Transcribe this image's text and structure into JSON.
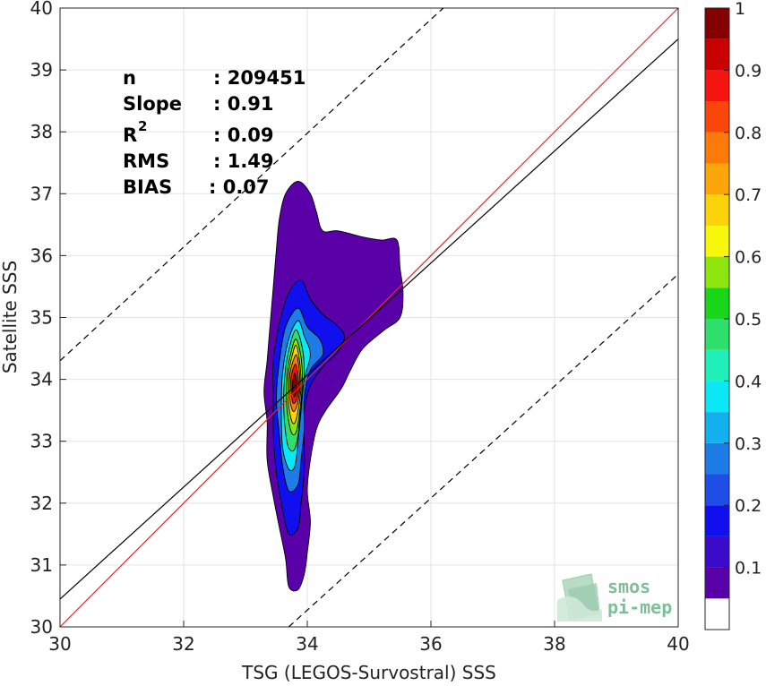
{
  "chart_data": {
    "type": "scatter",
    "subtype": "density-contour",
    "xlabel": "TSG (LEGOS-Survostral) SSS",
    "ylabel": "Satellite SSS",
    "xlim": [
      30,
      40
    ],
    "ylim": [
      30,
      40
    ],
    "xticks": [
      "30",
      "32",
      "34",
      "36",
      "38",
      "40"
    ],
    "yticks": [
      "30",
      "31",
      "32",
      "33",
      "34",
      "35",
      "36",
      "37",
      "38",
      "39",
      "40"
    ],
    "grid": true,
    "stats": [
      {
        "label": "n",
        "value": ": 209451"
      },
      {
        "label": "Slope",
        "value": ": 0.91"
      },
      {
        "label": "R",
        "sup": "2",
        "value": ": 0.09"
      },
      {
        "label": "RMS",
        "value": ": 1.49"
      },
      {
        "label": "BIAS",
        "value": ": 0.07"
      }
    ],
    "lines": {
      "identity": {
        "x": [
          30,
          40
        ],
        "y": [
          30,
          40
        ],
        "color": "#e8242a"
      },
      "regression": {
        "x": [
          30,
          40
        ],
        "y": [
          30.45,
          39.5
        ],
        "color": "#000000"
      },
      "rms_upper": {
        "x": [
          30,
          36.2
        ],
        "y": [
          34.3,
          40
        ],
        "color": "#000000",
        "dash": true
      },
      "rms_lower": {
        "x": [
          33.7,
          40
        ],
        "y": [
          30,
          35.7
        ],
        "color": "#000000",
        "dash": true
      }
    },
    "density_peak": {
      "x": 33.8,
      "y": 34.0
    },
    "contours": [
      {
        "level": 0.05,
        "points": [
          [
            33.85,
            37.2
          ],
          [
            34.05,
            37.0
          ],
          [
            34.15,
            36.7
          ],
          [
            34.25,
            36.4
          ],
          [
            34.5,
            36.4
          ],
          [
            34.9,
            36.3
          ],
          [
            35.2,
            36.25
          ],
          [
            35.45,
            36.25
          ],
          [
            35.5,
            35.8
          ],
          [
            35.55,
            35.4
          ],
          [
            35.5,
            35.0
          ],
          [
            35.25,
            34.8
          ],
          [
            34.9,
            34.5
          ],
          [
            34.7,
            34.15
          ],
          [
            34.55,
            33.85
          ],
          [
            34.3,
            33.5
          ],
          [
            34.15,
            33.2
          ],
          [
            34.05,
            32.7
          ],
          [
            34.0,
            32.2
          ],
          [
            34.05,
            31.7
          ],
          [
            34.0,
            31.2
          ],
          [
            33.95,
            30.85
          ],
          [
            33.85,
            30.6
          ],
          [
            33.7,
            30.65
          ],
          [
            33.65,
            31.1
          ],
          [
            33.55,
            31.6
          ],
          [
            33.45,
            32.1
          ],
          [
            33.35,
            32.7
          ],
          [
            33.35,
            33.3
          ],
          [
            33.3,
            33.8
          ],
          [
            33.35,
            34.3
          ],
          [
            33.4,
            34.9
          ],
          [
            33.45,
            35.5
          ],
          [
            33.5,
            36.1
          ],
          [
            33.55,
            36.6
          ],
          [
            33.65,
            37.0
          ]
        ]
      },
      {
        "level": 0.15,
        "points": [
          [
            33.9,
            35.6
          ],
          [
            34.05,
            35.3
          ],
          [
            34.25,
            35.05
          ],
          [
            34.45,
            34.9
          ],
          [
            34.6,
            34.7
          ],
          [
            34.5,
            34.45
          ],
          [
            34.25,
            34.2
          ],
          [
            34.05,
            33.9
          ],
          [
            33.95,
            33.5
          ],
          [
            33.95,
            33.0
          ],
          [
            33.95,
            32.5
          ],
          [
            33.9,
            32.0
          ],
          [
            33.85,
            31.6
          ],
          [
            33.7,
            31.5
          ],
          [
            33.6,
            31.9
          ],
          [
            33.5,
            32.5
          ],
          [
            33.45,
            33.1
          ],
          [
            33.45,
            33.7
          ],
          [
            33.45,
            34.3
          ],
          [
            33.55,
            34.9
          ],
          [
            33.7,
            35.4
          ]
        ]
      },
      {
        "level": 0.25,
        "points": [
          [
            33.85,
            35.15
          ],
          [
            34.0,
            34.85
          ],
          [
            34.2,
            34.65
          ],
          [
            34.25,
            34.4
          ],
          [
            34.05,
            34.15
          ],
          [
            33.95,
            33.7
          ],
          [
            33.95,
            33.2
          ],
          [
            33.9,
            32.7
          ],
          [
            33.85,
            32.3
          ],
          [
            33.7,
            32.2
          ],
          [
            33.6,
            32.6
          ],
          [
            33.55,
            33.1
          ],
          [
            33.5,
            33.7
          ],
          [
            33.55,
            34.3
          ],
          [
            33.65,
            34.85
          ]
        ]
      },
      {
        "level": 0.35,
        "points": [
          [
            33.85,
            34.95
          ],
          [
            33.95,
            34.7
          ],
          [
            34.05,
            34.4
          ],
          [
            33.95,
            34.0
          ],
          [
            33.9,
            33.5
          ],
          [
            33.85,
            33.0
          ],
          [
            33.8,
            32.6
          ],
          [
            33.7,
            32.55
          ],
          [
            33.6,
            32.9
          ],
          [
            33.58,
            33.5
          ],
          [
            33.6,
            34.1
          ],
          [
            33.7,
            34.65
          ]
        ]
      },
      {
        "level": 0.45,
        "points": [
          [
            33.82,
            34.8
          ],
          [
            33.92,
            34.5
          ],
          [
            33.95,
            34.1
          ],
          [
            33.9,
            33.6
          ],
          [
            33.85,
            33.1
          ],
          [
            33.78,
            32.85
          ],
          [
            33.68,
            32.95
          ],
          [
            33.62,
            33.5
          ],
          [
            33.64,
            34.1
          ],
          [
            33.72,
            34.55
          ]
        ]
      },
      {
        "level": 0.55,
        "points": [
          [
            33.82,
            34.65
          ],
          [
            33.9,
            34.35
          ],
          [
            33.92,
            33.95
          ],
          [
            33.88,
            33.5
          ],
          [
            33.82,
            33.15
          ],
          [
            33.74,
            33.15
          ],
          [
            33.67,
            33.55
          ],
          [
            33.67,
            34.05
          ],
          [
            33.74,
            34.45
          ]
        ]
      },
      {
        "level": 0.65,
        "points": [
          [
            33.82,
            34.55
          ],
          [
            33.88,
            34.25
          ],
          [
            33.9,
            33.9
          ],
          [
            33.86,
            33.55
          ],
          [
            33.8,
            33.3
          ],
          [
            33.74,
            33.35
          ],
          [
            33.69,
            33.7
          ],
          [
            33.7,
            34.1
          ],
          [
            33.76,
            34.4
          ]
        ]
      },
      {
        "level": 0.75,
        "points": [
          [
            33.82,
            34.4
          ],
          [
            33.87,
            34.15
          ],
          [
            33.88,
            33.85
          ],
          [
            33.84,
            33.6
          ],
          [
            33.78,
            33.48
          ],
          [
            33.73,
            33.6
          ],
          [
            33.71,
            33.85
          ],
          [
            33.73,
            34.15
          ]
        ]
      },
      {
        "level": 0.85,
        "points": [
          [
            33.81,
            34.25
          ],
          [
            33.85,
            34.05
          ],
          [
            33.86,
            33.82
          ],
          [
            33.82,
            33.65
          ],
          [
            33.77,
            33.62
          ],
          [
            33.74,
            33.8
          ],
          [
            33.74,
            34.05
          ]
        ]
      },
      {
        "level": 0.95,
        "points": [
          [
            33.8,
            34.1
          ],
          [
            33.83,
            33.95
          ],
          [
            33.83,
            33.8
          ],
          [
            33.79,
            33.72
          ],
          [
            33.76,
            33.85
          ],
          [
            33.77,
            34.0
          ]
        ]
      }
    ],
    "colorbar": {
      "ticks": [
        "0.1",
        "0.2",
        "0.3",
        "0.4",
        "0.5",
        "0.6",
        "0.7",
        "0.8",
        "0.9",
        "1"
      ],
      "range": [
        0,
        1
      ],
      "bands": [
        {
          "from": 0.0,
          "to": 0.05,
          "color": "#ffffff"
        },
        {
          "from": 0.05,
          "to": 0.1,
          "color": "#5a00a8"
        },
        {
          "from": 0.1,
          "to": 0.15,
          "color": "#3a0bc9"
        },
        {
          "from": 0.15,
          "to": 0.2,
          "color": "#1010ef"
        },
        {
          "from": 0.2,
          "to": 0.25,
          "color": "#1f4ee6"
        },
        {
          "from": 0.25,
          "to": 0.3,
          "color": "#1e7ce6"
        },
        {
          "from": 0.3,
          "to": 0.35,
          "color": "#13b0f0"
        },
        {
          "from": 0.35,
          "to": 0.4,
          "color": "#0ae8f5"
        },
        {
          "from": 0.4,
          "to": 0.45,
          "color": "#1ff0b9"
        },
        {
          "from": 0.45,
          "to": 0.5,
          "color": "#2ee06b"
        },
        {
          "from": 0.5,
          "to": 0.55,
          "color": "#19d619"
        },
        {
          "from": 0.55,
          "to": 0.6,
          "color": "#8fe60e"
        },
        {
          "from": 0.6,
          "to": 0.65,
          "color": "#f7f70b"
        },
        {
          "from": 0.65,
          "to": 0.7,
          "color": "#fcd20a"
        },
        {
          "from": 0.7,
          "to": 0.75,
          "color": "#fca60a"
        },
        {
          "from": 0.75,
          "to": 0.8,
          "color": "#fb7a0a"
        },
        {
          "from": 0.8,
          "to": 0.85,
          "color": "#f9470c"
        },
        {
          "from": 0.85,
          "to": 0.9,
          "color": "#f5140f"
        },
        {
          "from": 0.9,
          "to": 0.95,
          "color": "#c80000"
        },
        {
          "from": 0.95,
          "to": 1.0,
          "color": "#850000"
        }
      ]
    }
  },
  "logo": {
    "line1": "smos",
    "line2": "pi-mep"
  }
}
